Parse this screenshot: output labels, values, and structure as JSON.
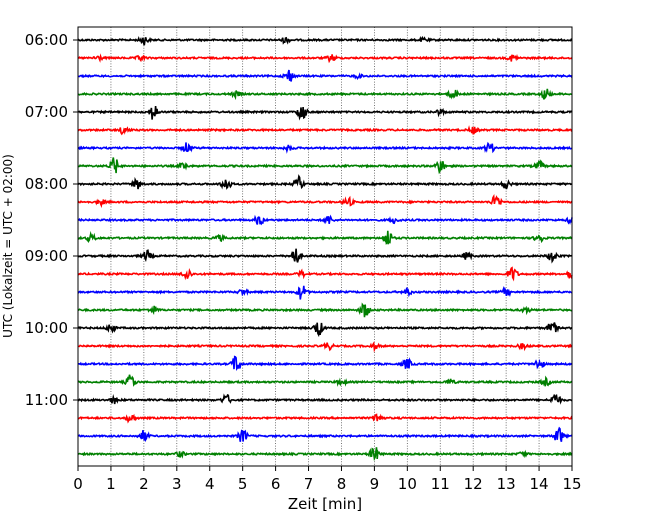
{
  "chart_data": {
    "type": "line",
    "subtype": "helicorder",
    "xlabel": "Zeit  [min]",
    "ylabel": "UTC (Lokalzeit = UTC + 02:00)",
    "xlim": [
      0,
      15
    ],
    "x_ticks": [
      "0",
      "1",
      "2",
      "3",
      "4",
      "5",
      "6",
      "7",
      "8",
      "9",
      "10",
      "11",
      "12",
      "13",
      "14",
      "15"
    ],
    "y_tick_labels": [
      "06:00",
      "07:00",
      "08:00",
      "09:00",
      "10:00",
      "11:00"
    ],
    "grid": "vertical dotted at each minute",
    "trace_colors": [
      "#000000",
      "#ff0000",
      "#0000ff",
      "#008000"
    ],
    "traces": [
      {
        "start": "06:00",
        "events": [
          [
            2.0,
            0.5
          ],
          [
            6.3,
            0.3
          ],
          [
            10.5,
            0.2
          ]
        ]
      },
      {
        "start": "06:15",
        "events": [
          [
            0.6,
            0.3
          ],
          [
            1.9,
            0.3
          ],
          [
            7.7,
            0.4
          ],
          [
            13.2,
            0.4
          ]
        ]
      },
      {
        "start": "06:30",
        "events": [
          [
            6.4,
            0.8
          ],
          [
            8.5,
            0.2
          ]
        ]
      },
      {
        "start": "06:45",
        "events": [
          [
            4.8,
            0.3
          ],
          [
            11.4,
            0.5
          ],
          [
            14.2,
            0.7
          ]
        ]
      },
      {
        "start": "07:00",
        "events": [
          [
            2.3,
            0.9
          ],
          [
            6.8,
            1.0
          ],
          [
            11.0,
            0.3
          ]
        ]
      },
      {
        "start": "07:15",
        "events": [
          [
            1.4,
            0.5
          ],
          [
            12.0,
            0.4
          ]
        ]
      },
      {
        "start": "07:30",
        "events": [
          [
            3.3,
            0.6
          ],
          [
            6.4,
            0.3
          ],
          [
            12.5,
            0.6
          ]
        ]
      },
      {
        "start": "07:45",
        "events": [
          [
            1.1,
            1.0
          ],
          [
            3.2,
            0.3
          ],
          [
            11.0,
            0.8
          ],
          [
            14.0,
            0.5
          ]
        ]
      },
      {
        "start": "08:00",
        "events": [
          [
            1.8,
            0.6
          ],
          [
            4.5,
            0.8
          ],
          [
            6.7,
            0.8
          ],
          [
            13.0,
            0.5
          ]
        ]
      },
      {
        "start": "08:15",
        "events": [
          [
            0.7,
            0.3
          ],
          [
            8.2,
            0.5
          ],
          [
            12.7,
            0.9
          ]
        ]
      },
      {
        "start": "08:30",
        "events": [
          [
            5.5,
            0.6
          ],
          [
            7.6,
            0.5
          ],
          [
            9.6,
            0.3
          ],
          [
            15.0,
            0.5
          ]
        ]
      },
      {
        "start": "08:45",
        "events": [
          [
            0.4,
            0.4
          ],
          [
            4.3,
            0.3
          ],
          [
            9.4,
            1.0
          ],
          [
            14.0,
            0.6
          ]
        ]
      },
      {
        "start": "09:00",
        "events": [
          [
            2.1,
            0.6
          ],
          [
            6.6,
            1.0
          ],
          [
            11.8,
            0.4
          ],
          [
            14.4,
            0.7
          ]
        ]
      },
      {
        "start": "09:15",
        "events": [
          [
            3.3,
            0.7
          ],
          [
            6.8,
            0.3
          ],
          [
            13.2,
            0.8
          ],
          [
            15.0,
            0.7
          ]
        ]
      },
      {
        "start": "09:30",
        "events": [
          [
            5.0,
            0.3
          ],
          [
            6.8,
            0.9
          ],
          [
            10.0,
            0.4
          ],
          [
            13.0,
            0.4
          ]
        ]
      },
      {
        "start": "09:45",
        "events": [
          [
            2.3,
            0.4
          ],
          [
            8.7,
            0.9
          ],
          [
            13.6,
            0.3
          ]
        ]
      },
      {
        "start": "10:00",
        "events": [
          [
            1.0,
            0.5
          ],
          [
            7.3,
            0.9
          ],
          [
            14.4,
            0.8
          ]
        ]
      },
      {
        "start": "10:15",
        "events": [
          [
            7.6,
            0.4
          ],
          [
            9.0,
            0.3
          ],
          [
            13.5,
            0.3
          ]
        ]
      },
      {
        "start": "10:30",
        "events": [
          [
            4.8,
            1.0
          ],
          [
            10.0,
            0.6
          ],
          [
            14.0,
            0.6
          ]
        ]
      },
      {
        "start": "10:45",
        "events": [
          [
            1.6,
            0.9
          ],
          [
            8.0,
            0.3
          ],
          [
            11.3,
            0.3
          ],
          [
            14.2,
            0.4
          ]
        ]
      },
      {
        "start": "11:00",
        "events": [
          [
            1.1,
            0.4
          ],
          [
            4.5,
            0.6
          ],
          [
            14.5,
            0.8
          ]
        ]
      },
      {
        "start": "11:15",
        "events": [
          [
            1.6,
            0.5
          ],
          [
            9.1,
            0.6
          ]
        ]
      },
      {
        "start": "11:30",
        "events": [
          [
            2.0,
            0.6
          ],
          [
            5.0,
            0.8
          ],
          [
            14.6,
            1.0
          ]
        ]
      },
      {
        "start": "11:45",
        "events": [
          [
            3.1,
            0.3
          ],
          [
            9.0,
            0.9
          ],
          [
            13.5,
            0.2
          ]
        ]
      }
    ]
  }
}
